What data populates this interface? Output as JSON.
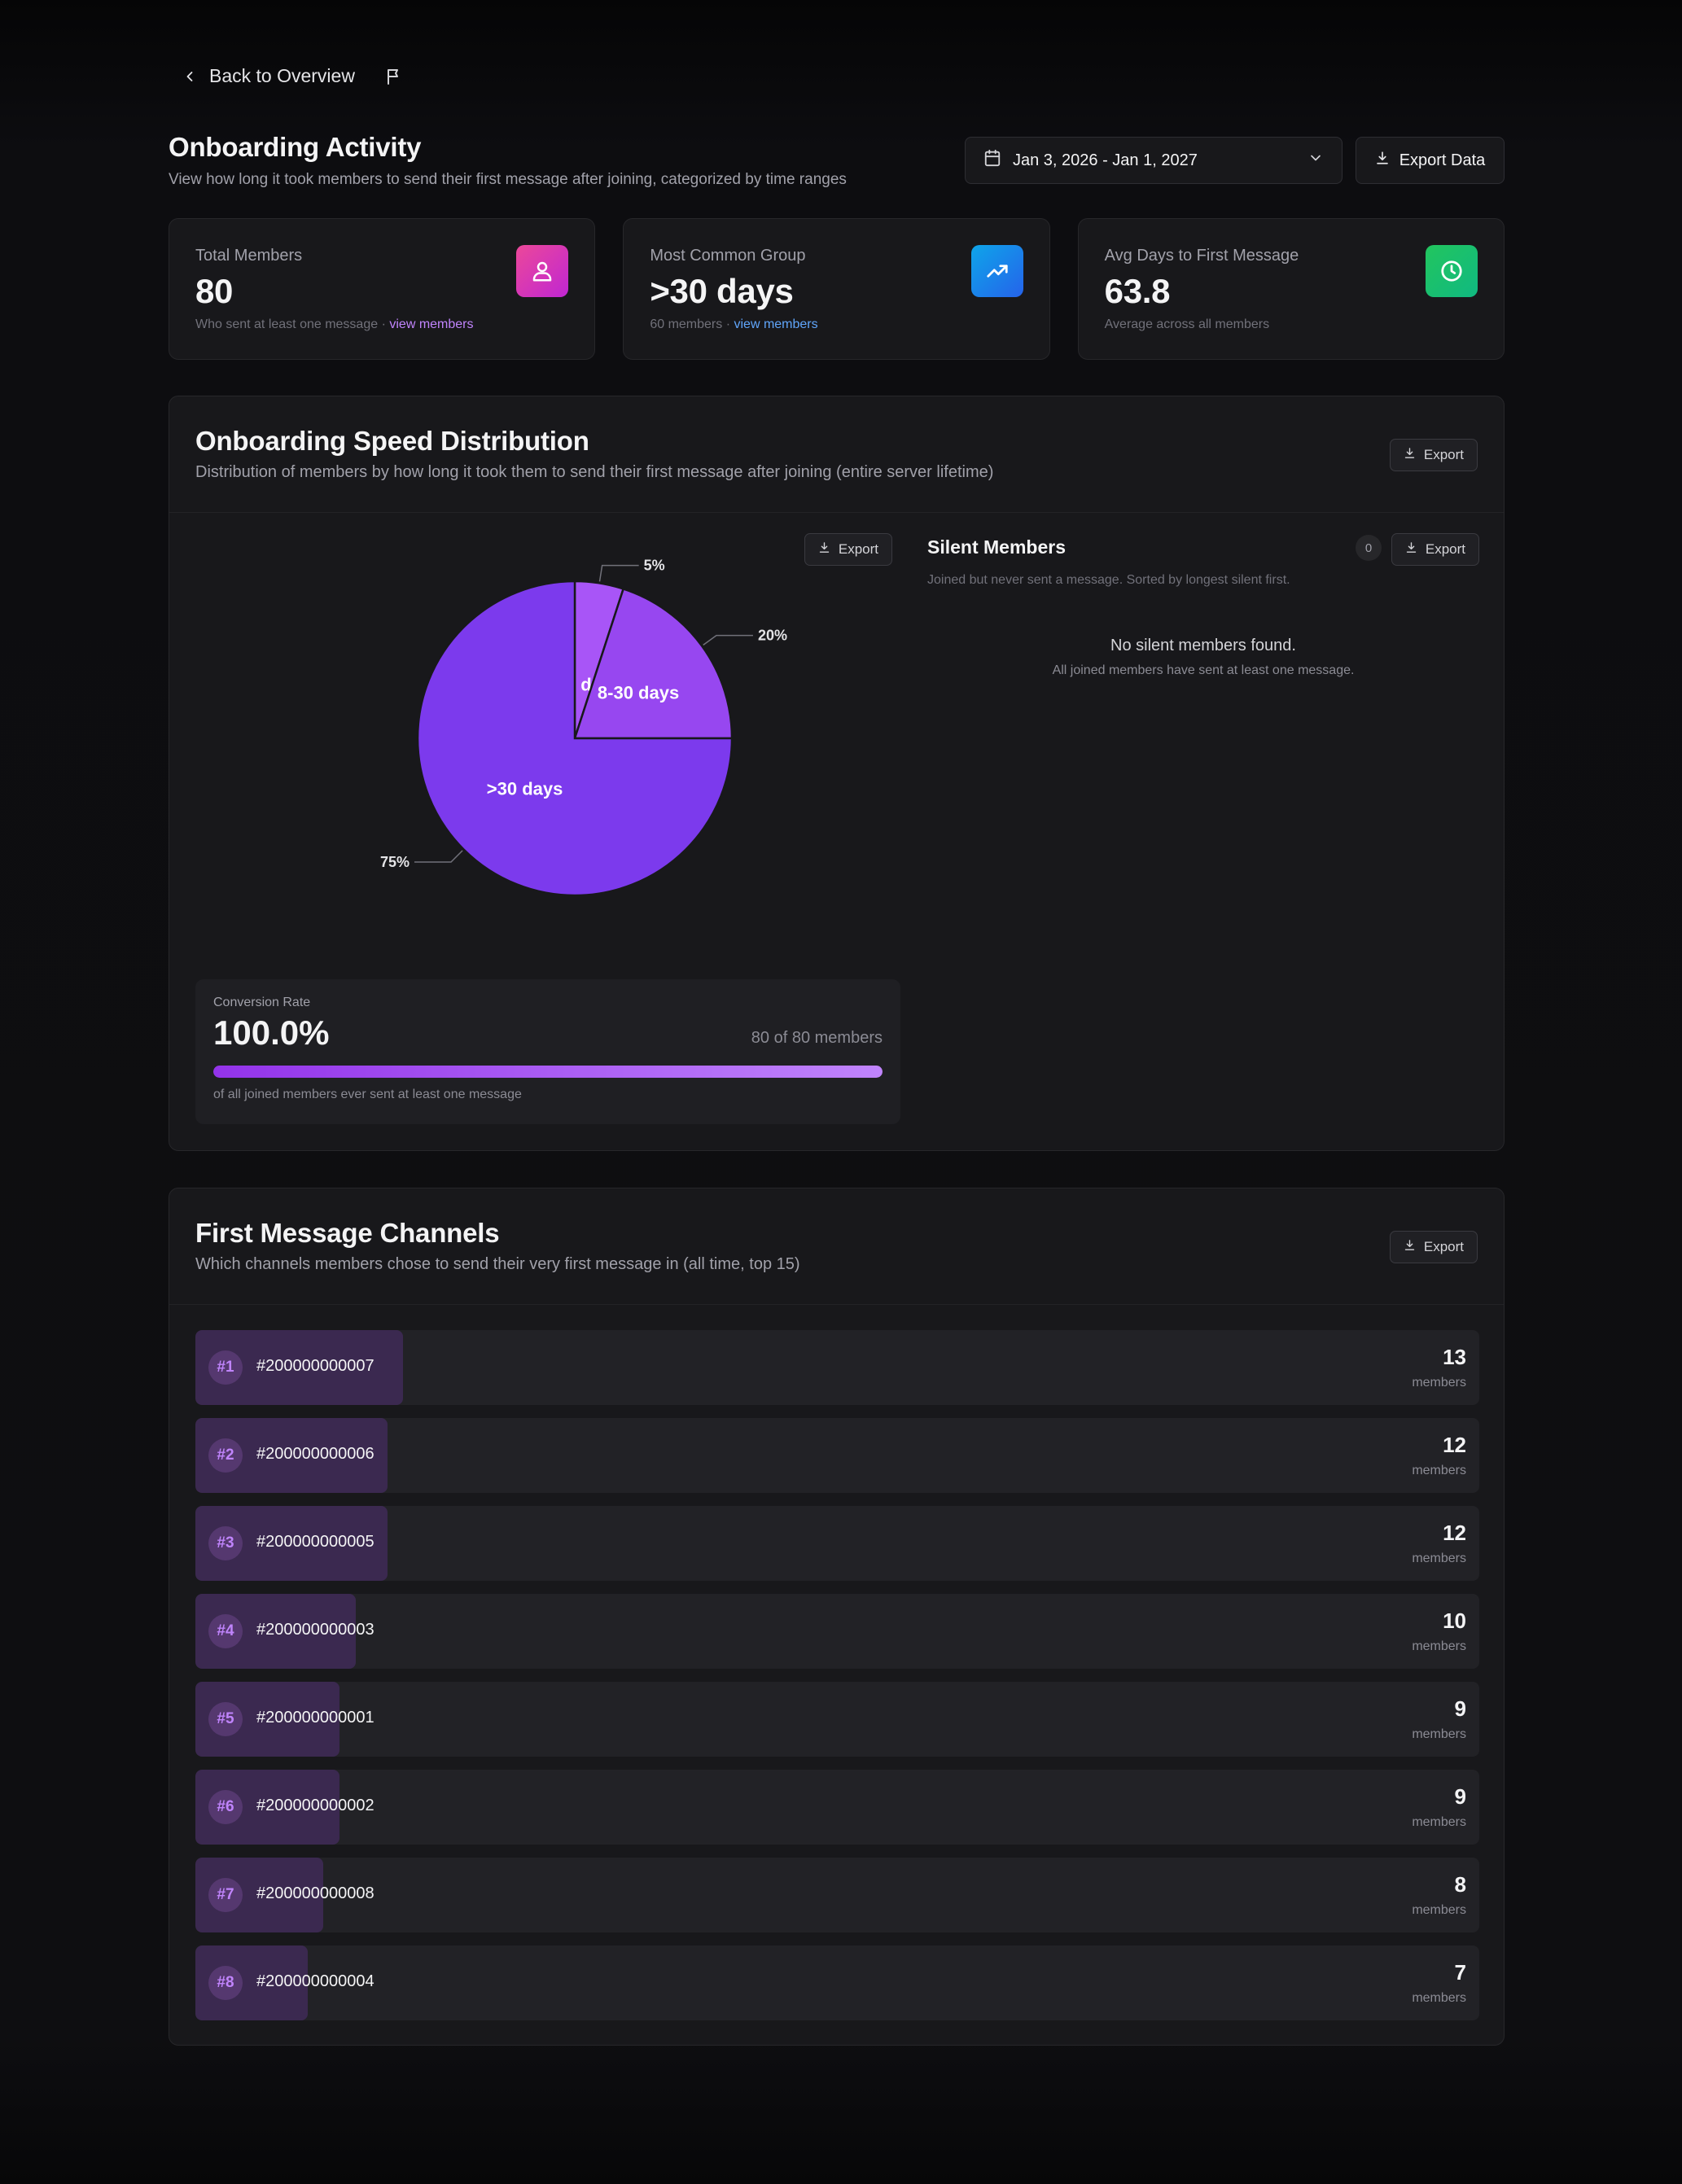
{
  "nav": {
    "back_label": "Back to Overview"
  },
  "header": {
    "title": "Onboarding Activity",
    "subtitle": "View how long it took members to send their first message after joining, categorized by time ranges",
    "date_range": "Jan 3, 2026 - Jan 1, 2027",
    "export_label": "Export Data"
  },
  "stats": [
    {
      "label": "Total Members",
      "value": "80",
      "note": "Who sent at least one message ·",
      "link": "view members",
      "link_color": "#c084fc",
      "icon": "users-icon",
      "icon_bg": "#d946ef"
    },
    {
      "label": "Most Common Group",
      "value": ">30 days",
      "note": "60 members ·",
      "link": "view members",
      "link_color": "#60a5fa",
      "icon": "trending-up-icon",
      "icon_bg": "#0ea5e9"
    },
    {
      "label": "Avg Days to First Message",
      "value": "63.8",
      "note": "Average across all members",
      "icon": "clock-icon",
      "icon_bg": "#22c55e"
    }
  ],
  "distribution": {
    "title": "Onboarding Speed Distribution",
    "subtitle": "Distribution of members by how long it took them to send their first message after joining (entire server lifetime)",
    "export_label": "Export",
    "pie_export_label": "Export"
  },
  "chart_data": {
    "type": "pie",
    "title": "",
    "slices": [
      {
        "label": "<1 day",
        "value": 5,
        "percent_label": "5%",
        "color": "#a855f7"
      },
      {
        "label": "8-30 days",
        "value": 20,
        "percent_label": "20%",
        "color": "#9747f0"
      },
      {
        "label": ">30 days",
        "value": 75,
        "percent_label": "75%",
        "color": "#7c3aed"
      }
    ]
  },
  "conversion": {
    "label": "Conversion Rate",
    "value": "100.0%",
    "count": "80 of 80 members",
    "fraction": 1.0,
    "note": "of all joined members ever sent at least one message"
  },
  "silent": {
    "title": "Silent Members",
    "subtitle": "Joined but never sent a message. Sorted by longest silent first.",
    "count": "0",
    "export_label": "Export",
    "empty_title": "No silent members found.",
    "empty_sub": "All joined members have sent at least one message."
  },
  "channels": {
    "title": "First Message Channels",
    "subtitle": "Which channels members chose to send their very first message in (all time, top 15)",
    "export_label": "Export",
    "unit": "members",
    "items": [
      {
        "rank": "#1",
        "name": "#200000000007",
        "count": 13
      },
      {
        "rank": "#2",
        "name": "#200000000006",
        "count": 12
      },
      {
        "rank": "#3",
        "name": "#200000000005",
        "count": 12
      },
      {
        "rank": "#4",
        "name": "#200000000003",
        "count": 10
      },
      {
        "rank": "#5",
        "name": "#200000000001",
        "count": 9
      },
      {
        "rank": "#6",
        "name": "#200000000002",
        "count": 9
      },
      {
        "rank": "#7",
        "name": "#200000000008",
        "count": 8
      },
      {
        "rank": "#8",
        "name": "#200000000004",
        "count": 7
      }
    ]
  }
}
